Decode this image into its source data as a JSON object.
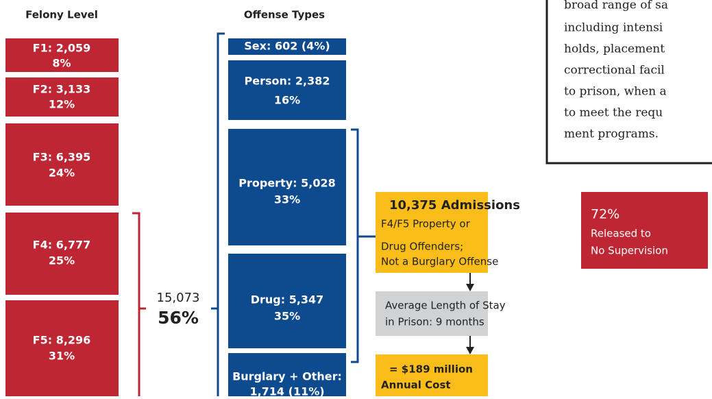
{
  "felony": {
    "header": "Felony Level",
    "boxes": [
      {
        "label": "F1: 2,059",
        "share": "8%"
      },
      {
        "label": "F2: 3,133",
        "share": "12%"
      },
      {
        "label": "F3: 6,395",
        "share": "24%"
      },
      {
        "label": "F4: 6,777",
        "share": "25%"
      },
      {
        "label": "F5: 8,296",
        "share": "31%"
      }
    ],
    "bracket": {
      "count": "15,073",
      "share": "56%"
    }
  },
  "offense": {
    "header": "Offense Types",
    "boxes": [
      {
        "label": "Sex: 602 (4%)"
      },
      {
        "label": "Person: 2,382",
        "share": "16%"
      },
      {
        "label": "Property: 5,028",
        "share": "33%"
      },
      {
        "label": "Drug: 5,347",
        "share": "35%"
      },
      {
        "label": "Burglary + Other:",
        "share": "1,714 (11%)"
      }
    ]
  },
  "flow": {
    "admissions": {
      "title": "10,375 Admissions",
      "lines": [
        "F4/F5 Property or",
        "Drug Offenders;",
        "Not a Burglary Offense"
      ]
    },
    "stay": {
      "lines": [
        "Average Length of Stay",
        "in Prison: 9 months"
      ]
    },
    "cost": {
      "lines": [
        "= $189 million",
        "Annual Cost"
      ]
    }
  },
  "released": {
    "share": "72%",
    "lines": [
      "Released to",
      "No Supervision"
    ]
  },
  "note": {
    "lines": [
      "broad range of sa",
      "including intensi",
      "holds, placement",
      "correctional facil",
      "to prison, when a",
      "to meet the requ",
      "ment programs."
    ]
  }
}
